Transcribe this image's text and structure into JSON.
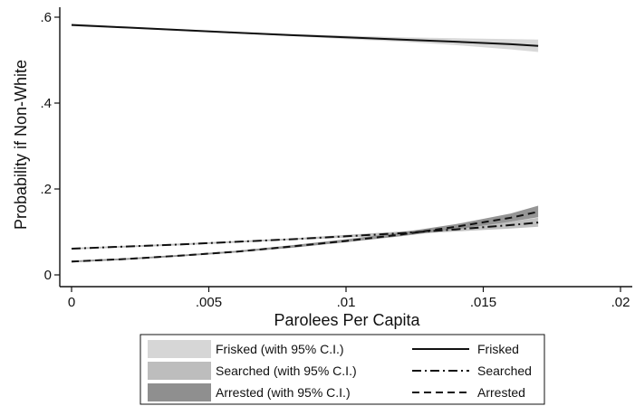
{
  "chart_data": {
    "type": "line",
    "title": "",
    "xlabel": "Parolees Per Capita",
    "ylabel": "Probability if Non-White",
    "xlim": [
      0,
      0.02
    ],
    "ylim": [
      0,
      0.6
    ],
    "grid": false,
    "legend_position": "bottom",
    "x_ticks": [
      {
        "value": 0,
        "label": "0"
      },
      {
        "value": 0.005,
        "label": ".005"
      },
      {
        "value": 0.01,
        "label": ".01"
      },
      {
        "value": 0.015,
        "label": ".015"
      },
      {
        "value": 0.02,
        "label": ".02"
      }
    ],
    "y_ticks": [
      {
        "value": 0,
        "label": "0"
      },
      {
        "value": 0.2,
        "label": ".2"
      },
      {
        "value": 0.4,
        "label": ".4"
      },
      {
        "value": 0.6,
        "label": ".6"
      }
    ],
    "x": [
      0,
      0.002,
      0.004,
      0.006,
      0.008,
      0.01,
      0.012,
      0.014,
      0.016,
      0.017
    ],
    "series": [
      {
        "name": "Frisked",
        "ci_label": "Frisked (with 95% C.I.)",
        "dash": "solid",
        "line_color": "#111111",
        "band_color": "#d6d6d6",
        "values": [
          0.582,
          0.576,
          0.57,
          0.564,
          0.558,
          0.553,
          0.548,
          0.543,
          0.537,
          0.533
        ],
        "lower": [
          0.579,
          0.574,
          0.568,
          0.562,
          0.556,
          0.549,
          0.543,
          0.535,
          0.525,
          0.519
        ],
        "upper": [
          0.585,
          0.578,
          0.572,
          0.566,
          0.561,
          0.557,
          0.553,
          0.551,
          0.549,
          0.548
        ]
      },
      {
        "name": "Searched",
        "ci_label": "Searched (with 95% C.I.)",
        "dash": "dashdot",
        "line_color": "#111111",
        "band_color": "#bdbdbd",
        "values": [
          0.061,
          0.066,
          0.071,
          0.077,
          0.083,
          0.09,
          0.097,
          0.106,
          0.116,
          0.122
        ],
        "lower": [
          0.059,
          0.064,
          0.069,
          0.075,
          0.081,
          0.087,
          0.094,
          0.101,
          0.108,
          0.112
        ],
        "upper": [
          0.063,
          0.068,
          0.073,
          0.079,
          0.085,
          0.093,
          0.101,
          0.111,
          0.124,
          0.133
        ]
      },
      {
        "name": "Arrested",
        "ci_label": "Arrested (with 95% C.I.)",
        "dash": "dashed",
        "line_color": "#111111",
        "band_color": "#8f8f8f",
        "values": [
          0.031,
          0.037,
          0.045,
          0.054,
          0.066,
          0.079,
          0.094,
          0.112,
          0.133,
          0.147
        ],
        "lower": [
          0.029,
          0.035,
          0.043,
          0.052,
          0.063,
          0.076,
          0.09,
          0.106,
          0.124,
          0.134
        ],
        "upper": [
          0.033,
          0.039,
          0.047,
          0.056,
          0.069,
          0.083,
          0.099,
          0.118,
          0.143,
          0.161
        ]
      }
    ]
  }
}
